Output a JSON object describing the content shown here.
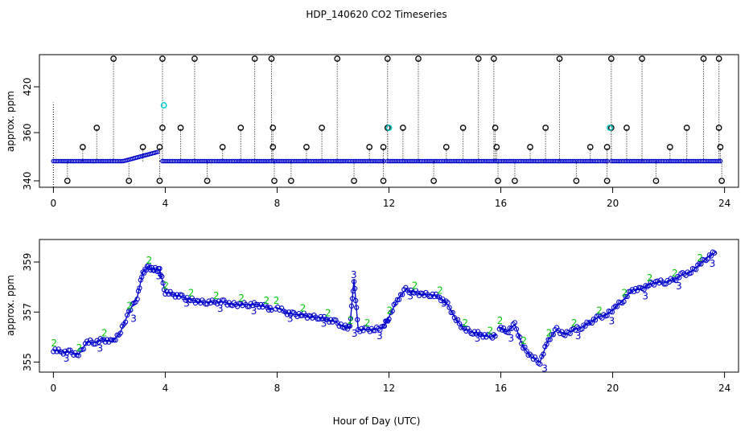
{
  "title": "HDP_140620  CO2 Timeseries",
  "xlabel": "Hour of Day (UTC)",
  "colors": {
    "blue": "#0000cc",
    "green": "#00cc00",
    "cyan": "#00cccc",
    "black": "#000000"
  },
  "chart_data": [
    {
      "type": "scatter",
      "panel": "top",
      "ylabel": "approx. ppm",
      "xlim": [
        -0.5,
        24.5
      ],
      "ylim": [
        336,
        444
      ],
      "x_ticks": [
        0,
        4,
        8,
        12,
        16,
        20,
        24
      ],
      "x_tick_labels": [
        "0",
        "4",
        "8",
        "12",
        "16",
        "20",
        "24"
      ],
      "y_ticks": [
        340,
        360,
        420
      ],
      "y_tick_labels": [
        "340",
        "360",
        "420"
      ],
      "y_tick_note": "axis labels as printed: 340 (bottom), 360, 420",
      "series_main": {
        "segments": [
          {
            "x_start": 0.0,
            "x_end": 3.75
          },
          {
            "x_start": 3.9,
            "x_end": 11.85
          },
          {
            "x_start": 11.95,
            "x_end": 19.85
          },
          {
            "x_start": 19.95,
            "x_end": 23.85
          }
        ],
        "level_y": 350
      },
      "outliers_high": [
        {
          "x": 2.15,
          "y": 440
        },
        {
          "x": 3.9,
          "y": 440
        },
        {
          "x": 5.05,
          "y": 440
        },
        {
          "x": 7.2,
          "y": 440
        },
        {
          "x": 7.8,
          "y": 440
        },
        {
          "x": 10.15,
          "y": 440
        },
        {
          "x": 11.95,
          "y": 440
        },
        {
          "x": 13.05,
          "y": 440
        },
        {
          "x": 15.2,
          "y": 440
        },
        {
          "x": 15.75,
          "y": 440
        },
        {
          "x": 18.1,
          "y": 440
        },
        {
          "x": 19.95,
          "y": 440
        },
        {
          "x": 21.05,
          "y": 440
        },
        {
          "x": 23.25,
          "y": 440
        },
        {
          "x": 23.8,
          "y": 440
        }
      ],
      "outliers_mid": [
        {
          "x": 1.55,
          "y": 362
        },
        {
          "x": 3.9,
          "y": 362
        },
        {
          "x": 4.55,
          "y": 362
        },
        {
          "x": 6.7,
          "y": 362
        },
        {
          "x": 7.85,
          "y": 362
        },
        {
          "x": 9.6,
          "y": 362
        },
        {
          "x": 11.95,
          "y": 362
        },
        {
          "x": 12.5,
          "y": 362
        },
        {
          "x": 14.65,
          "y": 362
        },
        {
          "x": 15.8,
          "y": 362
        },
        {
          "x": 17.6,
          "y": 362
        },
        {
          "x": 19.95,
          "y": 362
        },
        {
          "x": 20.5,
          "y": 362
        },
        {
          "x": 22.65,
          "y": 362
        },
        {
          "x": 23.8,
          "y": 362
        }
      ],
      "outliers_low_mid": [
        {
          "x": 1.05,
          "y": 353
        },
        {
          "x": 3.2,
          "y": 353
        },
        {
          "x": 3.8,
          "y": 353
        },
        {
          "x": 6.05,
          "y": 353
        },
        {
          "x": 7.85,
          "y": 353
        },
        {
          "x": 9.05,
          "y": 353
        },
        {
          "x": 11.3,
          "y": 353
        },
        {
          "x": 11.8,
          "y": 353
        },
        {
          "x": 14.05,
          "y": 353
        },
        {
          "x": 15.85,
          "y": 353
        },
        {
          "x": 17.05,
          "y": 353
        },
        {
          "x": 19.2,
          "y": 353
        },
        {
          "x": 19.8,
          "y": 353
        },
        {
          "x": 22.05,
          "y": 353
        },
        {
          "x": 23.85,
          "y": 353
        }
      ],
      "outliers_low": [
        {
          "x": 0.5,
          "y": 340
        },
        {
          "x": 2.7,
          "y": 340
        },
        {
          "x": 3.8,
          "y": 340
        },
        {
          "x": 5.5,
          "y": 340
        },
        {
          "x": 7.9,
          "y": 340
        },
        {
          "x": 8.5,
          "y": 340
        },
        {
          "x": 10.75,
          "y": 340
        },
        {
          "x": 11.8,
          "y": 340
        },
        {
          "x": 13.6,
          "y": 340
        },
        {
          "x": 15.9,
          "y": 340
        },
        {
          "x": 16.5,
          "y": 340
        },
        {
          "x": 18.7,
          "y": 340
        },
        {
          "x": 19.8,
          "y": 340
        },
        {
          "x": 21.55,
          "y": 340
        },
        {
          "x": 23.9,
          "y": 340
        }
      ],
      "cyan_points": [
        {
          "x": 3.95,
          "y": 373
        },
        {
          "x": 12.0,
          "y": 362
        },
        {
          "x": 19.9,
          "y": 362
        }
      ]
    },
    {
      "type": "line",
      "panel": "bottom",
      "ylabel": "approx. ppm",
      "xlim": [
        -0.5,
        24.5
      ],
      "ylim": [
        354.6,
        359.9
      ],
      "x_ticks": [
        0,
        4,
        8,
        12,
        16,
        20,
        24
      ],
      "x_tick_labels": [
        "0",
        "4",
        "8",
        "12",
        "16",
        "20",
        "24"
      ],
      "y_ticks": [
        355,
        357,
        359
      ],
      "y_tick_labels": [
        "355",
        "357",
        "359"
      ],
      "point_labels": [
        "3",
        "2"
      ],
      "series": [
        {
          "x": [
            0.0,
            0.3,
            0.6,
            0.9,
            1.2,
            1.5,
            1.8,
            2.1,
            2.4,
            2.7,
            3.0,
            3.2,
            3.4,
            3.6,
            3.8,
            4.0,
            4.3,
            4.6,
            4.9,
            5.2,
            5.5,
            5.8,
            6.1,
            6.4,
            6.7,
            7.0,
            7.3,
            7.6,
            7.85
          ],
          "y": [
            355.5,
            355.4,
            355.4,
            355.3,
            355.8,
            355.8,
            355.9,
            355.8,
            356.2,
            357.0,
            357.6,
            358.6,
            358.8,
            358.7,
            358.7,
            357.8,
            357.7,
            357.6,
            357.5,
            357.4,
            357.4,
            357.4,
            357.4,
            357.3,
            357.3,
            357.3,
            357.3,
            357.2,
            357.1
          ]
        },
        {
          "x": [
            7.95,
            8.3,
            8.6,
            8.9,
            9.2,
            9.5,
            9.8,
            10.1,
            10.4,
            10.6,
            10.75,
            10.9,
            11.2,
            11.5,
            11.8,
            12.0,
            12.3,
            12.6,
            12.9,
            13.2,
            13.5,
            13.8,
            14.1,
            14.4,
            14.7,
            15.0,
            15.3,
            15.6,
            15.85
          ],
          "y": [
            357.2,
            357.0,
            356.9,
            356.9,
            356.8,
            356.8,
            356.7,
            356.6,
            356.4,
            356.4,
            358.3,
            356.3,
            356.3,
            356.3,
            356.4,
            356.8,
            357.5,
            357.9,
            357.8,
            357.7,
            357.7,
            357.6,
            357.3,
            356.7,
            356.3,
            356.2,
            356.1,
            356.0,
            356.1
          ]
        },
        {
          "x": [
            15.95,
            16.2,
            16.5,
            16.8,
            17.1,
            17.4,
            17.7,
            18.0,
            18.3,
            18.6,
            18.9,
            19.2,
            19.5,
            19.8,
            20.1,
            20.4,
            20.7,
            21.0,
            21.3,
            21.6,
            21.9,
            22.2,
            22.5,
            22.8,
            23.1,
            23.4,
            23.7
          ],
          "y": [
            356.4,
            356.2,
            356.5,
            355.6,
            355.2,
            355.0,
            355.9,
            356.3,
            356.1,
            356.3,
            356.4,
            356.6,
            356.8,
            356.9,
            357.2,
            357.5,
            357.9,
            357.9,
            358.1,
            358.2,
            358.2,
            358.3,
            358.5,
            358.6,
            358.9,
            359.2,
            359.4
          ]
        }
      ]
    }
  ]
}
